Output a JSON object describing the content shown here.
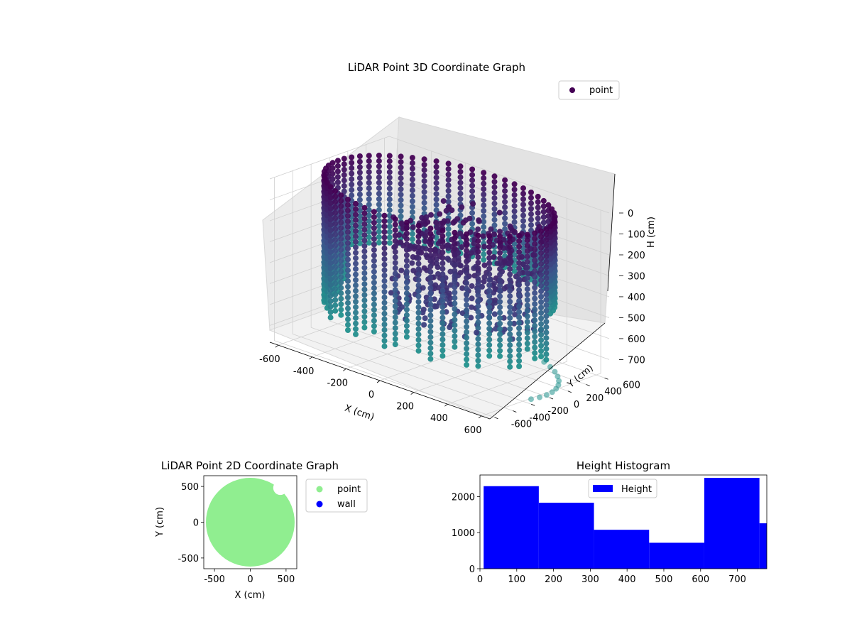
{
  "chart_data": [
    {
      "type": "scatter3d",
      "title": "LiDAR Point 3D Coordinate Graph",
      "xlabel": "X (cm)",
      "ylabel": "Y (cm)",
      "zlabel": "H (cm)",
      "xticks": [
        -600,
        -400,
        -200,
        0,
        200,
        400,
        600
      ],
      "yticks": [
        -600,
        -400,
        -200,
        0,
        200,
        400,
        600
      ],
      "zticks": [
        0,
        100,
        200,
        300,
        400,
        500,
        600,
        700
      ],
      "xlim": [
        -650,
        650
      ],
      "ylim": [
        -650,
        650
      ],
      "zlim": [
        0,
        780
      ],
      "z_inverted": true,
      "legend": {
        "entries": [
          "point"
        ],
        "placement": "top-right"
      },
      "colormap": "viridis",
      "series": [
        {
          "name": "point",
          "wall_radius": 600,
          "wall_height_range": [
            0,
            780
          ],
          "wall_columns": 60,
          "interior_cluster": {
            "x_range": [
              0,
              600
            ],
            "y_range": [
              -600,
              100
            ],
            "height_range": [
              0,
              500
            ]
          },
          "floor_arc": {
            "radius": 620,
            "height": 780
          }
        }
      ]
    },
    {
      "type": "scatter",
      "title": "LiDAR Point 2D Coordinate Graph",
      "xlabel": "X (cm)",
      "ylabel": "Y (cm)",
      "xticks": [
        -500,
        0,
        500
      ],
      "yticks": [
        -500,
        0,
        500
      ],
      "xlim": [
        -650,
        650
      ],
      "ylim": [
        -650,
        650
      ],
      "legend": {
        "entries": [
          "point",
          "wall"
        ],
        "placement": "outside-right"
      },
      "series": [
        {
          "name": "point",
          "color": "#90ee90",
          "shape": "disc",
          "radius": 620,
          "notch": {
            "x": 420,
            "y": 480
          }
        },
        {
          "name": "wall",
          "color": "#0000ff",
          "count": 0
        }
      ]
    },
    {
      "type": "histogram",
      "title": "Height Histogram",
      "xlabel": "",
      "ylabel": "",
      "xticks": [
        0,
        100,
        200,
        300,
        400,
        500,
        600,
        700
      ],
      "yticks": [
        0,
        1000,
        2000
      ],
      "xlim": [
        0,
        780
      ],
      "ylim": [
        0,
        2600
      ],
      "legend": {
        "entries": [
          "Height"
        ],
        "placement": "top-center"
      },
      "color": "#0000ff",
      "bins": [
        {
          "start": 10,
          "end": 160,
          "count": 2290
        },
        {
          "start": 160,
          "end": 310,
          "count": 1830
        },
        {
          "start": 310,
          "end": 460,
          "count": 1080
        },
        {
          "start": 460,
          "end": 610,
          "count": 720
        },
        {
          "start": 610,
          "end": 760,
          "count": 2520
        },
        {
          "start": 760,
          "end": 780,
          "count": 1260
        }
      ]
    }
  ]
}
